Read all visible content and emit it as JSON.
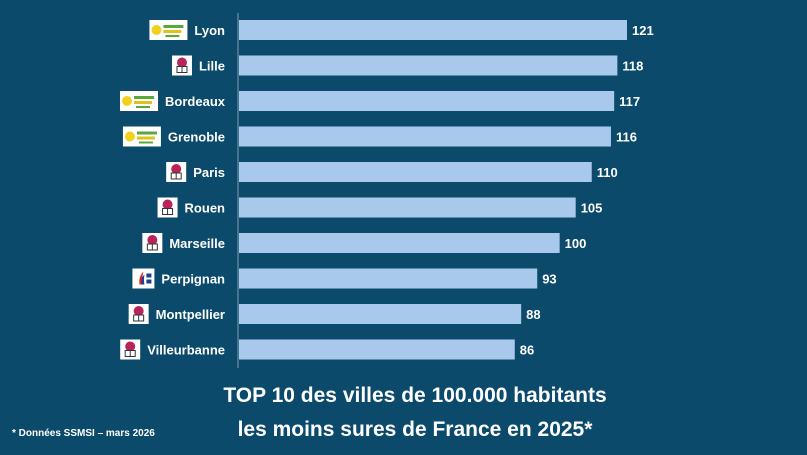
{
  "chart_data": {
    "type": "bar",
    "orientation": "horizontal",
    "categories": [
      "Lyon",
      "Lille",
      "Bordeaux",
      "Grenoble",
      "Paris",
      "Rouen",
      "Marseille",
      "Perpignan",
      "Montpellier",
      "Villeurbanne"
    ],
    "values": [
      121,
      118,
      117,
      116,
      110,
      105,
      100,
      93,
      88,
      86
    ],
    "party_logos": [
      "ecologie-les-verts-logo",
      "socialist-party-logo",
      "ecologie-les-verts-logo",
      "ecologie-les-verts-logo",
      "socialist-party-logo",
      "socialist-party-logo",
      "socialist-party-logo",
      "rassemblement-national-logo",
      "socialist-party-logo",
      "socialist-party-logo"
    ],
    "bar_color": "#a9c9ec",
    "background_color": "#0b4a6b",
    "xlim": [
      0,
      125
    ],
    "data_labels": true,
    "grid": false
  },
  "title": {
    "line1": "TOP 10 des villes de 100.000 habitants",
    "line2": "les moins sures de France en 2025*"
  },
  "footnote": "* Données SSMSI – mars 2026"
}
